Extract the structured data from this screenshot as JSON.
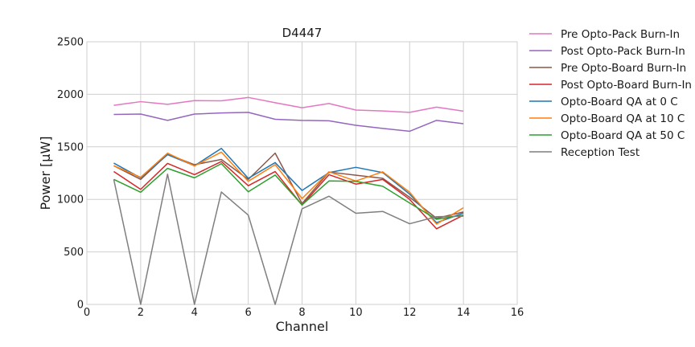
{
  "chart_data": {
    "type": "line",
    "title": "D4447",
    "xlabel": "Channel",
    "ylabel": "Power [μW]",
    "xlim": [
      0,
      16
    ],
    "ylim": [
      0,
      2500
    ],
    "xticks": [
      0,
      2,
      4,
      6,
      8,
      10,
      12,
      14,
      16
    ],
    "yticks": [
      0,
      500,
      1000,
      1500,
      2000,
      2500
    ],
    "grid": true,
    "legend_position": "outside-top-right",
    "x": [
      1,
      2,
      3,
      4,
      5,
      6,
      7,
      8,
      9,
      10,
      11,
      12,
      13,
      14
    ],
    "series": [
      {
        "name": "Pre Opto-Pack Burn-In",
        "color": "#e377c2",
        "values": [
          1895,
          1930,
          1905,
          1940,
          1938,
          1970,
          1920,
          1872,
          1912,
          1850,
          1842,
          1828,
          1878,
          1840
        ]
      },
      {
        "name": "Post Opto-Pack Burn-In",
        "color": "#9467bd",
        "values": [
          1808,
          1812,
          1752,
          1812,
          1822,
          1828,
          1762,
          1752,
          1748,
          1705,
          1675,
          1648,
          1752,
          1720
        ]
      },
      {
        "name": "Pre Opto-Board Burn-In",
        "color": "#8c564b",
        "values": [
          1320,
          1190,
          1430,
          1330,
          1380,
          1190,
          1440,
          960,
          1260,
          1230,
          1200,
          1020,
          820,
          880
        ]
      },
      {
        "name": "Post Opto-Board Burn-In",
        "color": "#d62728",
        "values": [
          1265,
          1095,
          1342,
          1235,
          1360,
          1130,
          1265,
          945,
          1235,
          1145,
          1190,
          1000,
          720,
          850
        ]
      },
      {
        "name": "Opto-Board QA at 0 C",
        "color": "#1f77b4",
        "values": [
          1345,
          1205,
          1425,
          1320,
          1485,
          1200,
          1350,
          1085,
          1255,
          1305,
          1255,
          1050,
          778,
          870
        ]
      },
      {
        "name": "Opto-Board QA at 10 C",
        "color": "#ff7f0e",
        "values": [
          1320,
          1210,
          1440,
          1318,
          1450,
          1172,
          1330,
          1008,
          1262,
          1175,
          1262,
          1068,
          765,
          920
        ]
      },
      {
        "name": "Opto-Board QA at 50 C",
        "color": "#2ca02c",
        "values": [
          1190,
          1068,
          1295,
          1205,
          1340,
          1072,
          1232,
          948,
          1175,
          1172,
          1125,
          965,
          810,
          850
        ]
      },
      {
        "name": "Reception Test",
        "color": "#7f7f7f",
        "values": [
          1190,
          0,
          1240,
          0,
          1070,
          850,
          0,
          910,
          1030,
          868,
          885,
          768,
          835,
          840
        ]
      }
    ]
  }
}
